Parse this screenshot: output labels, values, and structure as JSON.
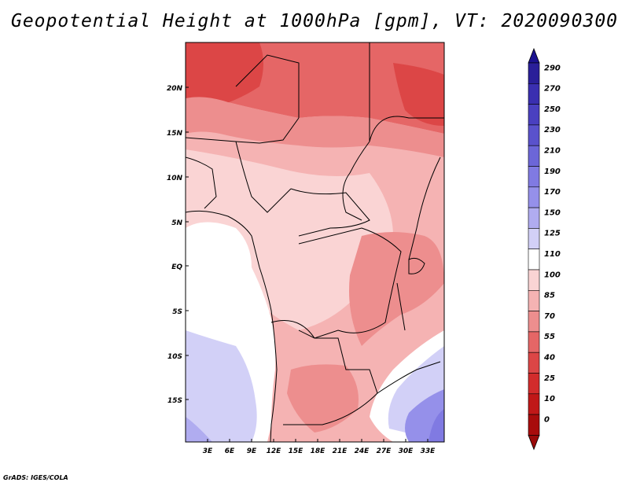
{
  "map": {
    "title": "Geopotential Height at 1000hPa [gpm], VT: 2020090300",
    "variable": "Geopotential Height",
    "level": "1000hPa",
    "units": "gpm",
    "valid_time": "2020090300",
    "credit": "GrADS: IGES/COLA",
    "lat_labels": [
      "20N",
      "15N",
      "10N",
      "5N",
      "EQ",
      "5S",
      "10S",
      "15S"
    ],
    "lon_labels": [
      "3E",
      "6E",
      "9E",
      "12E",
      "15E",
      "18E",
      "21E",
      "24E",
      "27E",
      "30E",
      "33E"
    ]
  },
  "colorbar": {
    "labels": [
      "290",
      "270",
      "250",
      "230",
      "210",
      "190",
      "170",
      "150",
      "125",
      "110",
      "100",
      "85",
      "70",
      "55",
      "40",
      "25",
      "10",
      "0"
    ],
    "colors": [
      "#2a1f99",
      "#3a2fb0",
      "#4a40c0",
      "#5a52cc",
      "#6c66d8",
      "#807ae2",
      "#9590ea",
      "#b0acf0",
      "#d2d0f7",
      "#ffffff",
      "#fad4d4",
      "#f5b3b3",
      "#ed8e8e",
      "#e56666",
      "#dc4646",
      "#d22c2c",
      "#c01818",
      "#a80c0c"
    ],
    "top_color": "#1c1290",
    "bottom_color": "#9a0a0a"
  }
}
